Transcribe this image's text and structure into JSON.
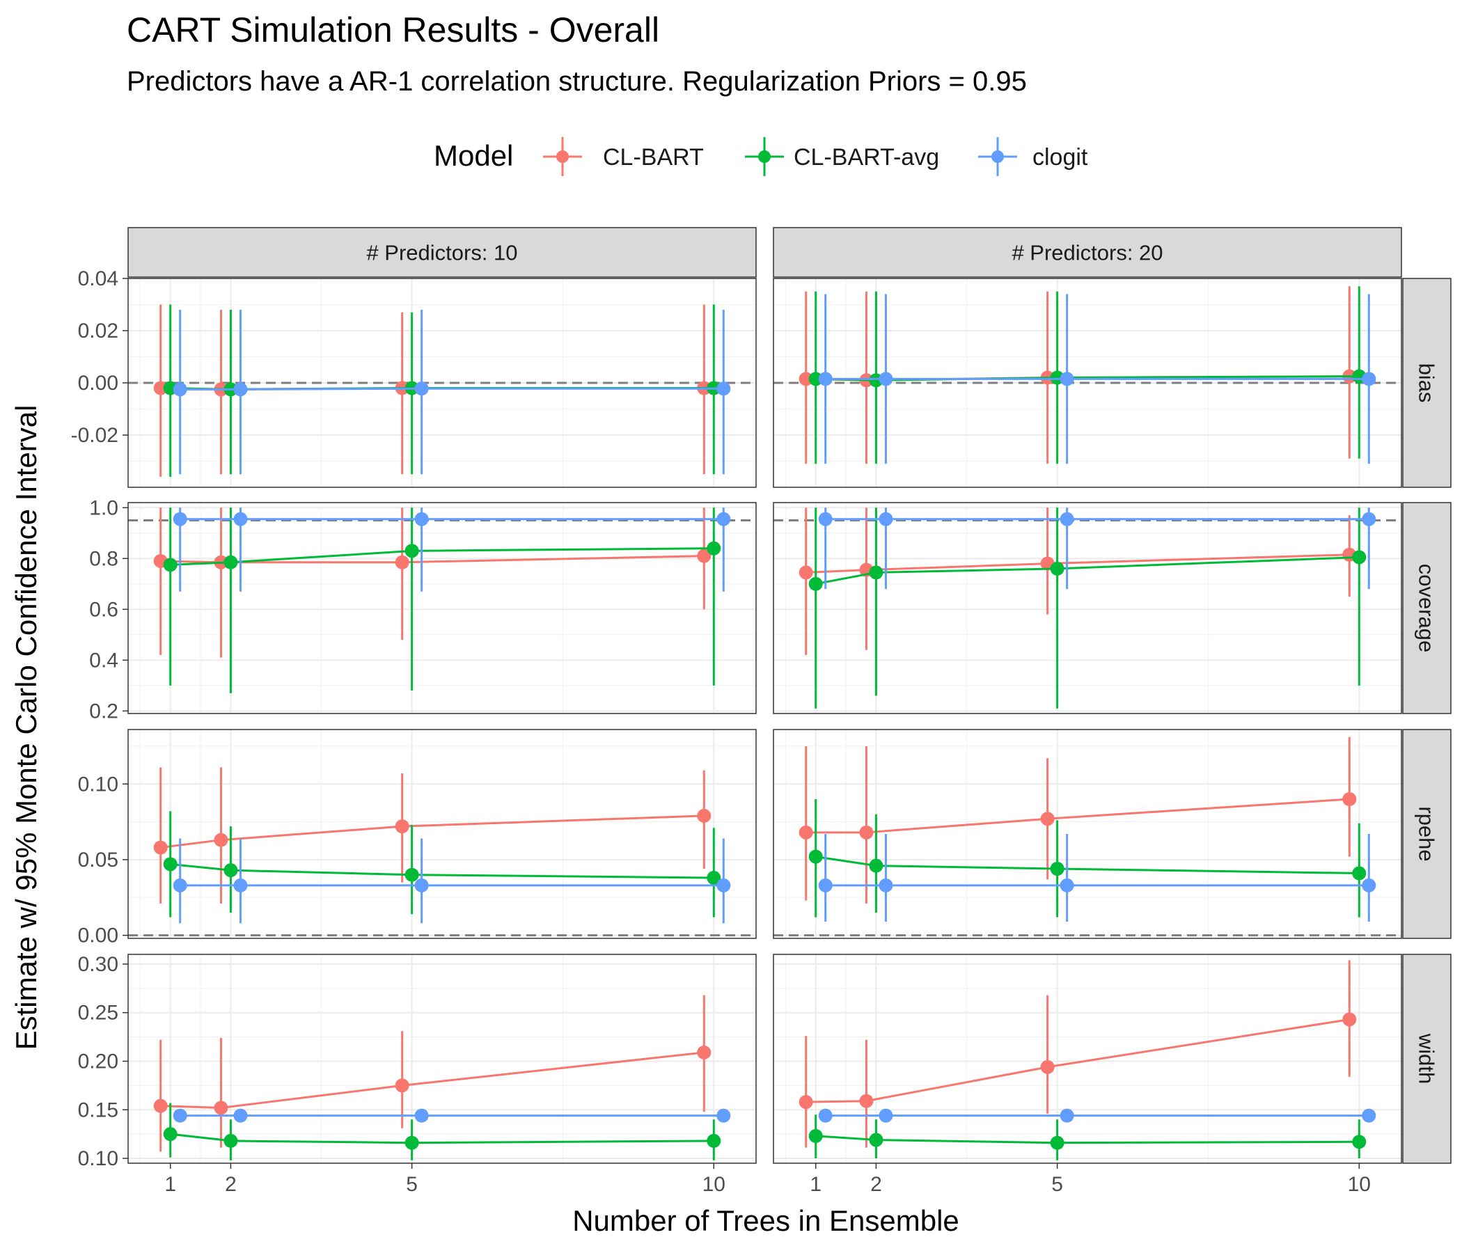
{
  "chart_data": {
    "type": "scatter",
    "title": "CART Simulation Results - Overall",
    "subtitle": "Predictors have a AR-1 correlation structure. Regularization Priors = 0.95",
    "xlabel": "Number of Trees in Ensemble",
    "ylabel": "Estimate w/ 95% Monte Carlo Confidence Interval",
    "legend": {
      "title": "Model",
      "placement": "top",
      "entries": [
        {
          "name": "CL-BART",
          "color": "#F8766D"
        },
        {
          "name": "CL-BART-avg",
          "color": "#00BA38"
        },
        {
          "name": "clogit",
          "color": "#619CFF"
        }
      ]
    },
    "x_ticks": [
      1,
      2,
      5,
      10
    ],
    "xlim": [
      0.3,
      10.7
    ],
    "columns": [
      {
        "label": "# Predictors: 10"
      },
      {
        "label": "# Predictors: 20"
      }
    ],
    "rows": [
      {
        "label": "bias",
        "ylim": [
          -0.04,
          0.04
        ],
        "y_ticks": [
          -0.02,
          0.0,
          0.02,
          0.04
        ],
        "tick_labels": [
          "-0.02",
          "0.00",
          "0.02",
          "0.04"
        ],
        "ref_line": 0.0
      },
      {
        "label": "coverage",
        "ylim": [
          0.19,
          1.02
        ],
        "y_ticks": [
          0.2,
          0.4,
          0.6,
          0.8,
          1.0
        ],
        "tick_labels": [
          "0.2",
          "0.4",
          "0.6",
          "0.8",
          "1.0"
        ],
        "ref_line": 0.95
      },
      {
        "label": "rpehe",
        "ylim": [
          -0.002,
          0.136
        ],
        "y_ticks": [
          0.0,
          0.05,
          0.1
        ],
        "tick_labels": [
          "0.00",
          "0.05",
          "0.10"
        ],
        "ref_line": 0.0
      },
      {
        "label": "width",
        "ylim": [
          0.095,
          0.31
        ],
        "y_ticks": [
          0.1,
          0.15,
          0.2,
          0.25,
          0.3
        ],
        "tick_labels": [
          "0.10",
          "0.15",
          "0.20",
          "0.25",
          "0.30"
        ]
      }
    ],
    "x": [
      1,
      2,
      5,
      10
    ],
    "panels": [
      {
        "row": "bias",
        "column": "# Predictors: 10",
        "series": [
          {
            "name": "CL-BART",
            "values": [
              -0.002,
              -0.0025,
              -0.002,
              -0.002
            ],
            "lower": [
              -0.036,
              -0.035,
              -0.035,
              -0.035
            ],
            "upper": [
              0.03,
              0.028,
              0.027,
              0.03
            ]
          },
          {
            "name": "CL-BART-avg",
            "values": [
              -0.002,
              -0.0025,
              -0.002,
              -0.002
            ],
            "lower": [
              -0.036,
              -0.035,
              -0.035,
              -0.035
            ],
            "upper": [
              0.03,
              0.028,
              0.027,
              0.03
            ]
          },
          {
            "name": "clogit",
            "values": [
              -0.0025,
              -0.0025,
              -0.0022,
              -0.0022
            ],
            "lower": [
              -0.035,
              -0.035,
              -0.035,
              -0.035
            ],
            "upper": [
              0.028,
              0.028,
              0.028,
              0.028
            ]
          }
        ]
      },
      {
        "row": "bias",
        "column": "# Predictors: 20",
        "series": [
          {
            "name": "CL-BART",
            "values": [
              0.0015,
              0.001,
              0.002,
              0.0025
            ],
            "lower": [
              -0.031,
              -0.031,
              -0.031,
              -0.029
            ],
            "upper": [
              0.035,
              0.035,
              0.035,
              0.037
            ]
          },
          {
            "name": "CL-BART-avg",
            "values": [
              0.0015,
              0.001,
              0.002,
              0.0025
            ],
            "lower": [
              -0.031,
              -0.031,
              -0.031,
              -0.029
            ],
            "upper": [
              0.035,
              0.035,
              0.035,
              0.037
            ]
          },
          {
            "name": "clogit",
            "values": [
              0.0015,
              0.0015,
              0.0015,
              0.0015
            ],
            "lower": [
              -0.031,
              -0.031,
              -0.031,
              -0.031
            ],
            "upper": [
              0.034,
              0.034,
              0.034,
              0.034
            ]
          }
        ]
      },
      {
        "row": "coverage",
        "column": "# Predictors: 10",
        "series": [
          {
            "name": "CL-BART",
            "values": [
              0.79,
              0.785,
              0.785,
              0.81
            ],
            "lower": [
              0.42,
              0.41,
              0.48,
              0.6
            ],
            "upper": [
              1.0,
              1.0,
              1.0,
              1.0
            ]
          },
          {
            "name": "CL-BART-avg",
            "values": [
              0.775,
              0.785,
              0.83,
              0.84
            ],
            "lower": [
              0.3,
              0.27,
              0.28,
              0.3
            ],
            "upper": [
              1.0,
              1.0,
              1.0,
              1.0
            ]
          },
          {
            "name": "clogit",
            "values": [
              0.955,
              0.955,
              0.955,
              0.955
            ],
            "lower": [
              0.67,
              0.67,
              0.67,
              0.67
            ],
            "upper": [
              1.0,
              1.0,
              1.0,
              1.0
            ]
          }
        ]
      },
      {
        "row": "coverage",
        "column": "# Predictors: 20",
        "series": [
          {
            "name": "CL-BART",
            "values": [
              0.745,
              0.755,
              0.78,
              0.815
            ],
            "lower": [
              0.42,
              0.44,
              0.58,
              0.65
            ],
            "upper": [
              1.0,
              1.0,
              1.0,
              0.97
            ]
          },
          {
            "name": "CL-BART-avg",
            "values": [
              0.7,
              0.745,
              0.76,
              0.805
            ],
            "lower": [
              0.21,
              0.26,
              0.21,
              0.3
            ],
            "upper": [
              1.0,
              1.0,
              1.0,
              1.0
            ]
          },
          {
            "name": "clogit",
            "values": [
              0.955,
              0.955,
              0.955,
              0.955
            ],
            "lower": [
              0.68,
              0.68,
              0.68,
              0.68
            ],
            "upper": [
              1.0,
              1.0,
              1.0,
              1.0
            ]
          }
        ]
      },
      {
        "row": "rpehe",
        "column": "# Predictors: 10",
        "series": [
          {
            "name": "CL-BART",
            "values": [
              0.058,
              0.063,
              0.072,
              0.079
            ],
            "lower": [
              0.021,
              0.021,
              0.035,
              0.044
            ],
            "upper": [
              0.111,
              0.111,
              0.107,
              0.109
            ]
          },
          {
            "name": "CL-BART-avg",
            "values": [
              0.047,
              0.043,
              0.04,
              0.038
            ],
            "lower": [
              0.012,
              0.015,
              0.014,
              0.012
            ],
            "upper": [
              0.082,
              0.072,
              0.073,
              0.071
            ]
          },
          {
            "name": "clogit",
            "values": [
              0.033,
              0.033,
              0.033,
              0.033
            ],
            "lower": [
              0.008,
              0.008,
              0.008,
              0.008
            ],
            "upper": [
              0.064,
              0.064,
              0.064,
              0.064
            ]
          }
        ]
      },
      {
        "row": "rpehe",
        "column": "# Predictors: 20",
        "series": [
          {
            "name": "CL-BART",
            "values": [
              0.068,
              0.068,
              0.077,
              0.09
            ],
            "lower": [
              0.023,
              0.021,
              0.037,
              0.052
            ],
            "upper": [
              0.125,
              0.125,
              0.117,
              0.131
            ]
          },
          {
            "name": "CL-BART-avg",
            "values": [
              0.052,
              0.046,
              0.044,
              0.041
            ],
            "lower": [
              0.012,
              0.015,
              0.012,
              0.012
            ],
            "upper": [
              0.09,
              0.08,
              0.076,
              0.074
            ]
          },
          {
            "name": "clogit",
            "values": [
              0.033,
              0.033,
              0.033,
              0.033
            ],
            "lower": [
              0.009,
              0.009,
              0.009,
              0.009
            ],
            "upper": [
              0.067,
              0.067,
              0.067,
              0.067
            ]
          }
        ]
      },
      {
        "row": "width",
        "column": "# Predictors: 10",
        "series": [
          {
            "name": "CL-BART",
            "values": [
              0.154,
              0.152,
              0.175,
              0.209
            ],
            "lower": [
              0.107,
              0.111,
              0.131,
              0.148
            ],
            "upper": [
              0.222,
              0.224,
              0.231,
              0.268
            ]
          },
          {
            "name": "CL-BART-avg",
            "values": [
              0.125,
              0.118,
              0.116,
              0.118
            ],
            "lower": [
              0.101,
              0.098,
              0.098,
              0.098
            ],
            "upper": [
              0.157,
              0.14,
              0.14,
              0.14
            ]
          },
          {
            "name": "clogit",
            "values": [
              0.144,
              0.144,
              0.144,
              0.144
            ],
            "lower": [
              0.144,
              0.144,
              0.144,
              0.144
            ],
            "upper": [
              0.144,
              0.144,
              0.144,
              0.144
            ]
          }
        ]
      },
      {
        "row": "width",
        "column": "# Predictors: 20",
        "series": [
          {
            "name": "CL-BART",
            "values": [
              0.158,
              0.159,
              0.194,
              0.243
            ],
            "lower": [
              0.111,
              0.111,
              0.146,
              0.184
            ],
            "upper": [
              0.226,
              0.222,
              0.268,
              0.304
            ]
          },
          {
            "name": "CL-BART-avg",
            "values": [
              0.123,
              0.119,
              0.116,
              0.117
            ],
            "lower": [
              0.1,
              0.1,
              0.098,
              0.1
            ],
            "upper": [
              0.145,
              0.14,
              0.14,
              0.14
            ]
          },
          {
            "name": "clogit",
            "values": [
              0.144,
              0.144,
              0.144,
              0.144
            ],
            "lower": [
              0.144,
              0.144,
              0.144,
              0.144
            ],
            "upper": [
              0.144,
              0.144,
              0.144,
              0.144
            ]
          }
        ]
      }
    ]
  }
}
